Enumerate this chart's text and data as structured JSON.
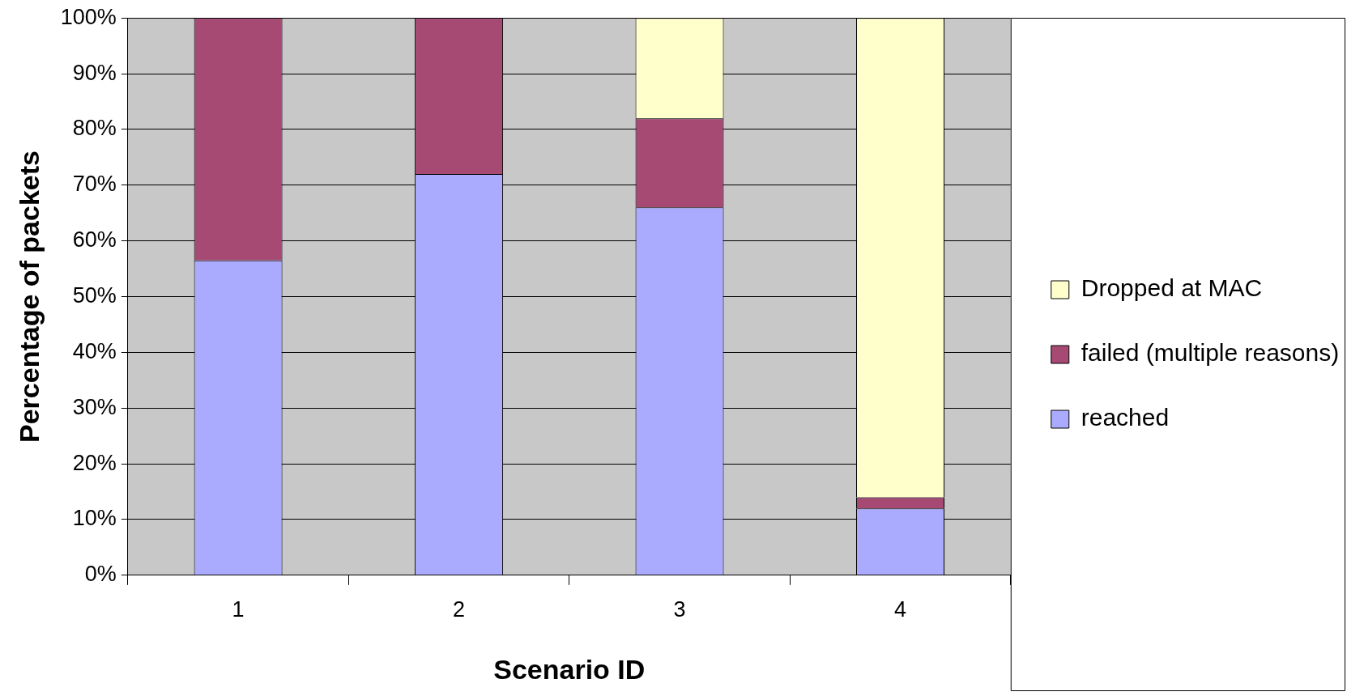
{
  "chart_data": {
    "type": "bar",
    "stacked": true,
    "xlabel": "Scenario ID",
    "ylabel": "Percentage of packets",
    "categories": [
      "1",
      "2",
      "3",
      "4"
    ],
    "series": [
      {
        "name": "reached",
        "color": "#aaaaff",
        "values": [
          56.5,
          72,
          66,
          12
        ]
      },
      {
        "name": "failed (multiple reasons)",
        "color": "#a64a74",
        "values": [
          43.5,
          28,
          16,
          2
        ]
      },
      {
        "name": "Dropped at MAC",
        "color": "#ffffcc",
        "values": [
          0,
          0,
          18,
          86
        ]
      }
    ],
    "ylim": [
      0,
      100
    ],
    "yticks": [
      {
        "value": 0,
        "label": "0%"
      },
      {
        "value": 10,
        "label": "10%"
      },
      {
        "value": 20,
        "label": "20%"
      },
      {
        "value": 30,
        "label": "30%"
      },
      {
        "value": 40,
        "label": "40%"
      },
      {
        "value": 50,
        "label": "50%"
      },
      {
        "value": 60,
        "label": "60%"
      },
      {
        "value": 70,
        "label": "70%"
      },
      {
        "value": 80,
        "label": "80%"
      },
      {
        "value": 90,
        "label": "90%"
      },
      {
        "value": 100,
        "label": "100%"
      }
    ],
    "grid": "y",
    "legend": "right"
  }
}
